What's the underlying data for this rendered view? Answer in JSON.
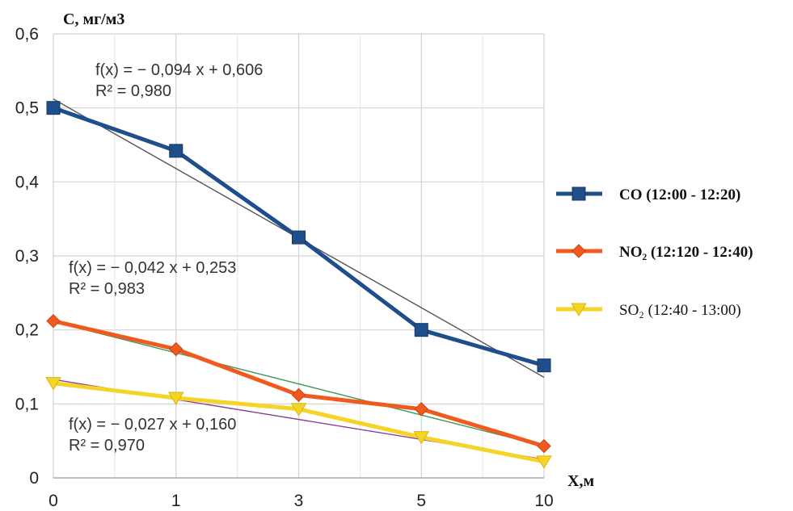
{
  "chart_data": {
    "type": "line",
    "xlabel": "X,м",
    "ylabel": "С, мг/м3",
    "x": [
      "0",
      "1",
      "3",
      "5",
      "10"
    ],
    "x_tick_labels": [
      "0",
      "1",
      "3",
      "5",
      "10"
    ],
    "y_tick_labels": [
      "0",
      "0,1",
      "0,2",
      "0,3",
      "0,4",
      "0,5",
      "0,6"
    ],
    "y_ticks": [
      0,
      0.1,
      0.2,
      0.3,
      0.4,
      0.5,
      0.6
    ],
    "ylim": [
      0,
      0.6
    ],
    "grid": true,
    "legend_position": "right",
    "series": [
      {
        "name": "CO (12:00 - 12:20)",
        "color": "#1f4e8c",
        "marker": "square",
        "values": [
          0.5,
          0.442,
          0.325,
          0.2,
          0.152
        ],
        "trendline": {
          "intercept": 0.606,
          "slope": -0.094,
          "color": "#555555"
        },
        "equation": "f(x) = − 0,094 x + 0,606",
        "r2": "R² = 0,980"
      },
      {
        "name": "NO₂ (12:120 - 12:40)",
        "color": "#f05a1e",
        "marker": "diamond",
        "values": [
          0.212,
          0.174,
          0.112,
          0.093,
          0.043
        ],
        "trendline": {
          "intercept": 0.253,
          "slope": -0.042,
          "color": "#3f9b5a"
        },
        "equation": "f(x) = − 0,042 x + 0,253",
        "r2": "R² = 0,983"
      },
      {
        "name": "SO₂ (12:40 - 13:00)",
        "color": "#f5d327",
        "marker": "triangle-down",
        "values": [
          0.128,
          0.108,
          0.093,
          0.055,
          0.022
        ],
        "trendline": {
          "intercept": 0.16,
          "slope": -0.027,
          "color": "#8a3f9b"
        },
        "equation": "f(x) = − 0,027 x + 0,160",
        "r2": "R² = 0,970"
      }
    ]
  }
}
